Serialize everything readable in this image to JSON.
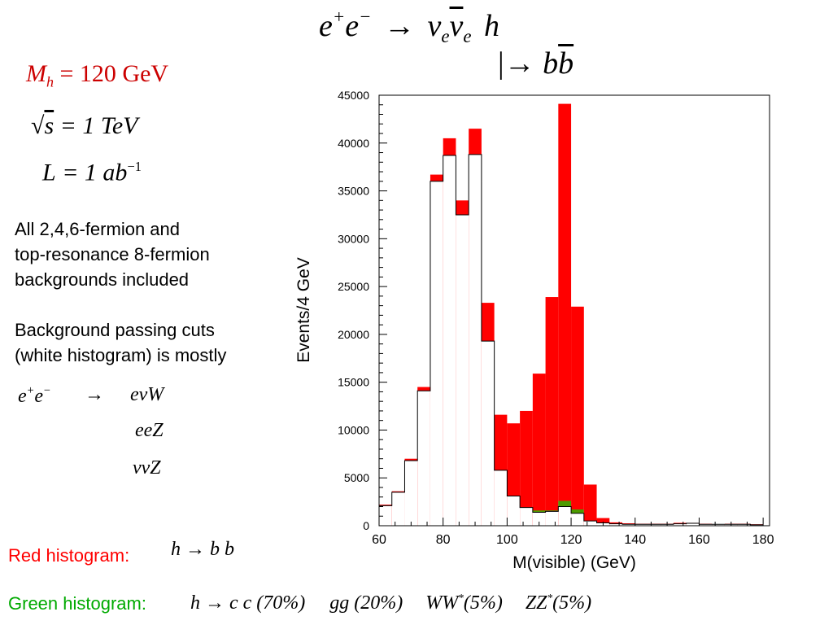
{
  "title": {
    "eq_main_lhs": "e",
    "eq_main_plus": "+",
    "eq_main_e2": "e",
    "eq_main_minus": "−",
    "eq_main_arrow": "→",
    "eq_nu": "ν",
    "eq_sub_e": "e",
    "eq_h": "h",
    "decay_bar": "|",
    "decay_arrow": "→",
    "decay_b": "b",
    "decay_bbar": "b"
  },
  "params": {
    "mass_sym": "M",
    "mass_sub": "h",
    "mass_val": "= 120 GeV",
    "sqrt_s": "s",
    "sqrt_val": "= 1 TeV",
    "lumi_sym": "L",
    "lumi_val": "= 1 ab",
    "lumi_exp": "−1"
  },
  "notes": {
    "line1": "All 2,4,6-fermion and",
    "line2": "top-resonance 8-fermion",
    "line3": "backgrounds included",
    "line4": "Background passing cuts",
    "line5": "(white histogram) is mostly"
  },
  "background_processes": {
    "e1": "e",
    "plus": "+",
    "e2": "e",
    "minus": "−",
    "arrow": "→",
    "proc1": "eνW",
    "proc2": "eeZ",
    "proc3": "ννZ"
  },
  "legend": {
    "red_label": "Red histogram:",
    "red_formula": "h → b b",
    "green_label": "Green histogram:",
    "green_formula_1": "h → c c (70%)",
    "green_formula_2": "gg (20%)",
    "green_formula_3a": "WW",
    "green_formula_3b": "(5%)",
    "green_formula_4a": "ZZ",
    "green_formula_4b": "(5%)",
    "star": "*"
  },
  "colors": {
    "signal": "#ff0000",
    "background_fill": "#ffffff",
    "green": "#00dd00",
    "text_red": "#ff0000"
  },
  "chart_data": {
    "type": "bar",
    "title": "",
    "xlabel": "M(visible) (GeV)",
    "ylabel": "Events/4 GeV",
    "xlim": [
      60,
      182
    ],
    "ylim": [
      0,
      45000
    ],
    "xticks": [
      60,
      80,
      100,
      120,
      140,
      160,
      180
    ],
    "yticks": [
      0,
      5000,
      10000,
      15000,
      20000,
      25000,
      30000,
      35000,
      40000,
      45000
    ],
    "bin_width": 4,
    "bin_edges_start": 60,
    "series": [
      {
        "key": "background",
        "values": [
          2100,
          3500,
          6800,
          14100,
          36000,
          38700,
          32500,
          38800,
          19300,
          5800,
          3100,
          1900,
          1400,
          1500,
          2000,
          1300,
          500,
          300,
          200,
          150,
          150,
          150,
          150,
          200,
          250,
          150,
          150,
          150,
          150,
          100
        ]
      },
      {
        "key": "total_red",
        "values": [
          2200,
          3600,
          7000,
          14500,
          36700,
          40500,
          34000,
          41500,
          23300,
          11600,
          10700,
          12000,
          15900,
          23900,
          44100,
          22900,
          4300,
          800,
          350,
          250,
          200,
          200,
          200,
          300,
          300,
          200,
          150,
          200,
          200,
          150
        ]
      },
      {
        "key": "green_top",
        "values": [
          0,
          0,
          0,
          0,
          0,
          0,
          0,
          0,
          0,
          0,
          0,
          1700,
          1600,
          1600,
          2600,
          1700,
          0,
          0,
          0,
          0,
          0,
          0,
          0,
          0,
          0,
          0,
          0,
          0,
          0,
          0
        ]
      }
    ],
    "grid": false,
    "legend": "none"
  }
}
